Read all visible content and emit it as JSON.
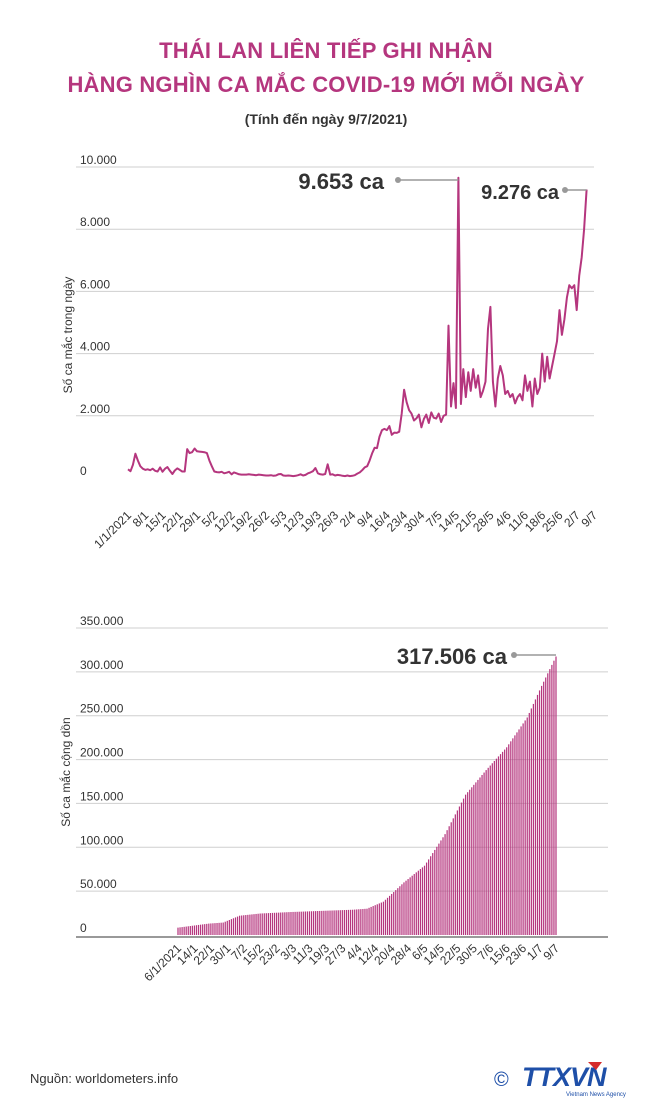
{
  "header": {
    "title_line1": "THÁI LAN LIÊN TIẾP GHI NHẬN",
    "title_line2": "HÀNG NGHÌN CA MẮC COVID-19 MỚI MỖI NGÀY",
    "subtitle": "(Tính đến ngày 9/7/2021)"
  },
  "colors": {
    "accent": "#b5367e",
    "grid": "#cfcfcf",
    "text": "#333333",
    "logo_blue": "#1e4fa8"
  },
  "chart_data": [
    {
      "type": "line",
      "title": "",
      "ylabel": "Số ca mắc trong ngày",
      "xlabel": "",
      "ylim": [
        0,
        10000
      ],
      "ytick_labels": [
        "0",
        "2.000",
        "4.000",
        "6.000",
        "8.000",
        "10.000"
      ],
      "ytick_values": [
        0,
        2000,
        4000,
        6000,
        8000,
        10000
      ],
      "x_start_day": 0,
      "x_end_day": 189,
      "xtick_labels": [
        "1/1/2021",
        "8/1",
        "15/1",
        "22/1",
        "29/1",
        "5/2",
        "12/2",
        "19/2",
        "26/2",
        "5/3",
        "12/3",
        "19/3",
        "26/3",
        "2/4",
        "9/4",
        "16/4",
        "23/4",
        "30/4",
        "7/5",
        "14/5",
        "21/5",
        "28/5",
        "4/6",
        "11/6",
        "18/6",
        "25/6",
        "2/7",
        "9/7"
      ],
      "xtick_days": [
        0,
        7,
        14,
        21,
        28,
        35,
        42,
        49,
        56,
        63,
        70,
        77,
        84,
        91,
        98,
        105,
        112,
        119,
        126,
        133,
        140,
        147,
        154,
        161,
        168,
        175,
        182,
        189
      ],
      "series": [
        {
          "name": "Số ca mắc trong ngày",
          "points": [
            [
              0,
              280
            ],
            [
              1,
              220
            ],
            [
              2,
              420
            ],
            [
              3,
              780
            ],
            [
              4,
              560
            ],
            [
              5,
              380
            ],
            [
              6,
              300
            ],
            [
              7,
              260
            ],
            [
              8,
              280
            ],
            [
              9,
              250
            ],
            [
              10,
              300
            ],
            [
              11,
              230
            ],
            [
              12,
              210
            ],
            [
              13,
              340
            ],
            [
              14,
              200
            ],
            [
              15,
              300
            ],
            [
              16,
              350
            ],
            [
              17,
              230
            ],
            [
              18,
              130
            ],
            [
              19,
              240
            ],
            [
              20,
              310
            ],
            [
              21,
              260
            ],
            [
              22,
              210
            ],
            [
              23,
              210
            ],
            [
              24,
              930
            ],
            [
              25,
              800
            ],
            [
              26,
              830
            ],
            [
              27,
              950
            ],
            [
              28,
              860
            ],
            [
              29,
              850
            ],
            [
              30,
              840
            ],
            [
              31,
              830
            ],
            [
              32,
              800
            ],
            [
              33,
              560
            ],
            [
              34,
              380
            ],
            [
              35,
              210
            ],
            [
              36,
              190
            ],
            [
              37,
              180
            ],
            [
              38,
              200
            ],
            [
              39,
              150
            ],
            [
              40,
              170
            ],
            [
              41,
              200
            ],
            [
              42,
              120
            ],
            [
              43,
              180
            ],
            [
              44,
              150
            ],
            [
              45,
              120
            ],
            [
              46,
              110
            ],
            [
              47,
              110
            ],
            [
              48,
              110
            ],
            [
              49,
              120
            ],
            [
              50,
              110
            ],
            [
              51,
              100
            ],
            [
              52,
              90
            ],
            [
              53,
              110
            ],
            [
              54,
              100
            ],
            [
              55,
              90
            ],
            [
              56,
              80
            ],
            [
              57,
              80
            ],
            [
              58,
              90
            ],
            [
              59,
              70
            ],
            [
              60,
              80
            ],
            [
              61,
              120
            ],
            [
              62,
              130
            ],
            [
              63,
              80
            ],
            [
              64,
              70
            ],
            [
              65,
              80
            ],
            [
              66,
              70
            ],
            [
              67,
              60
            ],
            [
              68,
              70
            ],
            [
              69,
              90
            ],
            [
              70,
              120
            ],
            [
              71,
              80
            ],
            [
              72,
              100
            ],
            [
              73,
              150
            ],
            [
              74,
              180
            ],
            [
              75,
              220
            ],
            [
              76,
              320
            ],
            [
              77,
              150
            ],
            [
              78,
              120
            ],
            [
              79,
              110
            ],
            [
              80,
              130
            ],
            [
              81,
              440
            ],
            [
              82,
              110
            ],
            [
              83,
              120
            ],
            [
              84,
              80
            ],
            [
              85,
              100
            ],
            [
              86,
              90
            ],
            [
              87,
              70
            ],
            [
              88,
              60
            ],
            [
              89,
              80
            ],
            [
              90,
              60
            ],
            [
              91,
              70
            ],
            [
              92,
              90
            ],
            [
              93,
              140
            ],
            [
              94,
              180
            ],
            [
              95,
              250
            ],
            [
              96,
              340
            ],
            [
              97,
              380
            ],
            [
              98,
              560
            ],
            [
              99,
              790
            ],
            [
              100,
              970
            ],
            [
              101,
              960
            ],
            [
              102,
              1330
            ],
            [
              103,
              1540
            ],
            [
              104,
              1580
            ],
            [
              105,
              1540
            ],
            [
              106,
              1670
            ],
            [
              107,
              1390
            ],
            [
              108,
              1460
            ],
            [
              109,
              1450
            ],
            [
              110,
              1490
            ],
            [
              111,
              2070
            ],
            [
              112,
              2840
            ],
            [
              113,
              2440
            ],
            [
              114,
              2180
            ],
            [
              115,
              2070
            ],
            [
              116,
              1850
            ],
            [
              117,
              1920
            ],
            [
              118,
              2040
            ],
            [
              119,
              1630
            ],
            [
              120,
              1900
            ],
            [
              121,
              2040
            ],
            [
              122,
              1770
            ],
            [
              123,
              2110
            ],
            [
              124,
              1940
            ],
            [
              125,
              1910
            ],
            [
              126,
              2070
            ],
            [
              127,
              1800
            ],
            [
              128,
              2000
            ],
            [
              129,
              2040
            ],
            [
              130,
              4900
            ],
            [
              131,
              2300
            ],
            [
              132,
              3050
            ],
            [
              133,
              2250
            ],
            [
              134,
              9653
            ],
            [
              135,
              2380
            ],
            [
              136,
              3500
            ],
            [
              137,
              2600
            ],
            [
              138,
              3400
            ],
            [
              139,
              2800
            ],
            [
              140,
              3500
            ],
            [
              141,
              2900
            ],
            [
              142,
              3300
            ],
            [
              143,
              2600
            ],
            [
              144,
              2800
            ],
            [
              145,
              3100
            ],
            [
              146,
              4800
            ],
            [
              147,
              5500
            ],
            [
              148,
              3100
            ],
            [
              149,
              2300
            ],
            [
              150,
              3200
            ],
            [
              151,
              3600
            ],
            [
              152,
              3300
            ],
            [
              153,
              2700
            ],
            [
              154,
              2800
            ],
            [
              155,
              2600
            ],
            [
              156,
              2700
            ],
            [
              157,
              2400
            ],
            [
              158,
              2600
            ],
            [
              159,
              2700
            ],
            [
              160,
              2500
            ],
            [
              161,
              3300
            ],
            [
              162,
              2800
            ],
            [
              163,
              3100
            ],
            [
              164,
              2300
            ],
            [
              165,
              3200
            ],
            [
              166,
              2700
            ],
            [
              167,
              2900
            ],
            [
              168,
              4000
            ],
            [
              169,
              3100
            ],
            [
              170,
              3900
            ],
            [
              171,
              3200
            ],
            [
              172,
              3600
            ],
            [
              173,
              4000
            ],
            [
              174,
              4400
            ],
            [
              175,
              5400
            ],
            [
              176,
              4600
            ],
            [
              177,
              5100
            ],
            [
              178,
              5800
            ],
            [
              179,
              6200
            ],
            [
              180,
              6100
            ],
            [
              181,
              6200
            ],
            [
              182,
              5400
            ],
            [
              183,
              6500
            ],
            [
              184,
              7100
            ],
            [
              185,
              8000
            ],
            [
              186,
              9276
            ]
          ]
        }
      ],
      "annotations": [
        {
          "label": "9.653 ca",
          "day": 134,
          "value": 9653
        },
        {
          "label": "9.276 ca",
          "day": 186,
          "value": 9276
        }
      ]
    },
    {
      "type": "bar",
      "title": "",
      "ylabel": "Số ca mắc cộng dồn",
      "xlabel": "",
      "ylim": [
        0,
        350000
      ],
      "ytick_labels": [
        "0",
        "50.000",
        "100.000",
        "150.000",
        "200.000",
        "250.000",
        "300.000",
        "350.000"
      ],
      "ytick_values": [
        0,
        50000,
        100000,
        150000,
        200000,
        250000,
        300000,
        350000
      ],
      "x_start_day": 5,
      "x_end_day": 189,
      "xtick_labels": [
        "6/1/2021",
        "14/1",
        "22/1",
        "30/1",
        "7/2",
        "15/2",
        "23/2",
        "3/3",
        "11/3",
        "19/3",
        "27/3",
        "4/4",
        "12/4",
        "20/4",
        "28/4",
        "6/5",
        "14/5",
        "22/5",
        "30/5",
        "7/6",
        "15/6",
        "23/6",
        "1/7",
        "9/7"
      ],
      "xtick_days": [
        5,
        13,
        21,
        29,
        37,
        45,
        53,
        61,
        69,
        77,
        85,
        93,
        101,
        109,
        117,
        125,
        133,
        141,
        149,
        157,
        165,
        173,
        181,
        189
      ],
      "series": [
        {
          "name": "Số ca mắc cộng dồn",
          "anchors": [
            [
              5,
              8400
            ],
            [
              20,
              13000
            ],
            [
              27,
              14200
            ],
            [
              35,
              22000
            ],
            [
              45,
              24500
            ],
            [
              60,
              26200
            ],
            [
              75,
              27500
            ],
            [
              90,
              28800
            ],
            [
              97,
              30000
            ],
            [
              105,
              38000
            ],
            [
              115,
              60000
            ],
            [
              125,
              79000
            ],
            [
              135,
              115000
            ],
            [
              145,
              160000
            ],
            [
              155,
              188000
            ],
            [
              165,
              214000
            ],
            [
              175,
              248000
            ],
            [
              182,
              284000
            ],
            [
              189,
              317506
            ]
          ]
        }
      ],
      "annotations": [
        {
          "label": "317.506 ca",
          "day": 189,
          "value": 317506
        }
      ]
    }
  ],
  "footer": {
    "source": "Nguồn: worldometers.info",
    "logo_text": "TTXVN",
    "logo_tagline": "Vietnam News Agency",
    "copyright": "©"
  }
}
